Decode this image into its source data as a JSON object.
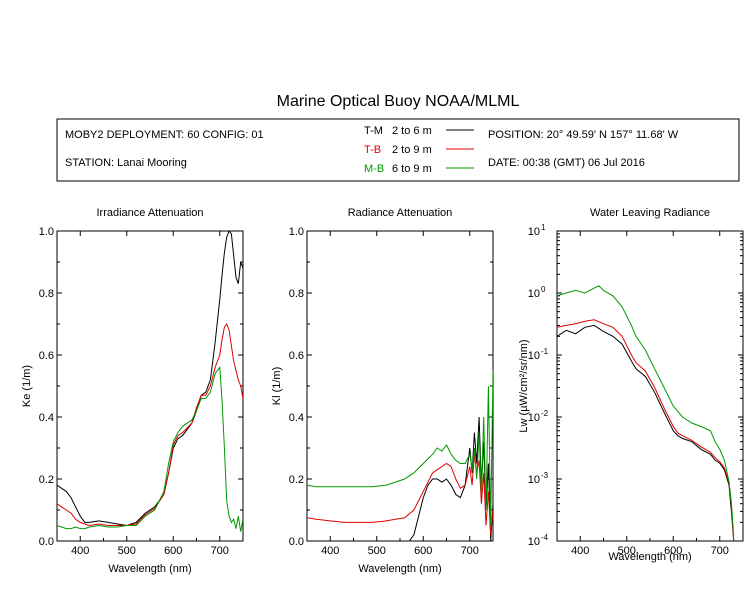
{
  "title": "Marine Optical Buoy NOAA/MLML",
  "info": {
    "deployment": "MOBY2 DEPLOYMENT: 60 CONFIG: 01",
    "station": "STATION: Lanai Mooring",
    "position": "POSITION: 20° 49.59' N   157° 11.68' W",
    "date": "DATE: 00:38 (GMT) 06 Jul 2016"
  },
  "legend": [
    {
      "label": "T-M",
      "range": "2 to 6  m",
      "color": "#000000"
    },
    {
      "label": "T-B",
      "range": "2 to 9  m",
      "color": "#dd0000"
    },
    {
      "label": "M-B",
      "range": "6 to 9  m",
      "color": "#009900"
    }
  ],
  "chart_data": [
    {
      "type": "line",
      "title": "Irradiance Attenuation",
      "xlabel": "Wavelength (nm)",
      "ylabel": "Ke  (1/m)",
      "xlim": [
        350,
        750
      ],
      "ylim": [
        0,
        1.0
      ],
      "xticks": [
        400,
        500,
        600,
        700
      ],
      "yticks": [
        0,
        0.2,
        0.4,
        0.6,
        0.8,
        1.0
      ],
      "ytick_labels": [
        "0.0",
        "0.2",
        "0.4",
        "0.6",
        "0.8",
        "1.0"
      ],
      "series": [
        {
          "name": "T-M",
          "color": "#000000",
          "x": [
            350,
            360,
            370,
            380,
            390,
            400,
            410,
            420,
            440,
            460,
            480,
            500,
            520,
            540,
            560,
            580,
            590,
            600,
            610,
            620,
            640,
            650,
            660,
            670,
            680,
            690,
            700,
            705,
            710,
            715,
            720,
            725,
            730,
            735,
            740,
            745,
            750
          ],
          "y": [
            0.18,
            0.17,
            0.16,
            0.14,
            0.11,
            0.08,
            0.06,
            0.06,
            0.065,
            0.06,
            0.055,
            0.05,
            0.06,
            0.09,
            0.11,
            0.15,
            0.22,
            0.3,
            0.33,
            0.34,
            0.38,
            0.42,
            0.47,
            0.48,
            0.52,
            0.64,
            0.78,
            0.86,
            0.93,
            0.98,
            1.0,
            0.99,
            0.92,
            0.85,
            0.83,
            0.9,
            0.88
          ]
        },
        {
          "name": "T-B",
          "color": "#dd0000",
          "x": [
            350,
            360,
            370,
            380,
            390,
            400,
            410,
            420,
            440,
            460,
            480,
            500,
            520,
            540,
            560,
            580,
            590,
            600,
            610,
            620,
            640,
            650,
            660,
            670,
            680,
            690,
            700,
            705,
            710,
            715,
            720,
            725,
            730,
            735,
            740,
            745,
            750
          ],
          "y": [
            0.12,
            0.11,
            0.1,
            0.09,
            0.07,
            0.06,
            0.055,
            0.05,
            0.055,
            0.05,
            0.05,
            0.05,
            0.055,
            0.085,
            0.105,
            0.15,
            0.22,
            0.31,
            0.34,
            0.35,
            0.38,
            0.43,
            0.47,
            0.47,
            0.5,
            0.56,
            0.6,
            0.65,
            0.69,
            0.7,
            0.68,
            0.63,
            0.58,
            0.55,
            0.52,
            0.5,
            0.46
          ]
        },
        {
          "name": "M-B",
          "color": "#009900",
          "x": [
            350,
            360,
            370,
            380,
            390,
            400,
            410,
            420,
            440,
            460,
            480,
            500,
            520,
            540,
            560,
            580,
            590,
            600,
            610,
            620,
            640,
            650,
            660,
            670,
            680,
            690,
            700,
            705,
            710,
            715,
            720,
            725,
            730,
            735,
            740,
            745,
            750
          ],
          "y": [
            0.05,
            0.045,
            0.04,
            0.04,
            0.045,
            0.04,
            0.04,
            0.045,
            0.05,
            0.045,
            0.045,
            0.05,
            0.05,
            0.08,
            0.1,
            0.16,
            0.25,
            0.32,
            0.35,
            0.37,
            0.39,
            0.42,
            0.46,
            0.46,
            0.48,
            0.54,
            0.56,
            0.45,
            0.3,
            0.13,
            0.08,
            0.06,
            0.07,
            0.04,
            0.08,
            0.03,
            0.07
          ]
        }
      ]
    },
    {
      "type": "line",
      "title": "Radiance Attenuation",
      "xlabel": "Wavelength (nm)",
      "ylabel": "Kl  (1/m)",
      "xlim": [
        350,
        750
      ],
      "ylim": [
        0,
        1.0
      ],
      "xticks": [
        400,
        500,
        600,
        700
      ],
      "yticks": [
        0,
        0.2,
        0.4,
        0.6,
        0.8,
        1.0
      ],
      "ytick_labels": [
        "0.0",
        "0.2",
        "0.4",
        "0.6",
        "0.8",
        "1.0"
      ],
      "series": [
        {
          "name": "T-M",
          "color": "#000000",
          "x": [
            560,
            570,
            580,
            590,
            600,
            610,
            620,
            630,
            640,
            650,
            660,
            670,
            680,
            690,
            700,
            705,
            710,
            715,
            720,
            725,
            730,
            735,
            740,
            745,
            750
          ],
          "y": [
            0.0,
            0.0,
            0.02,
            0.08,
            0.14,
            0.18,
            0.2,
            0.2,
            0.19,
            0.2,
            0.18,
            0.15,
            0.14,
            0.18,
            0.3,
            0.22,
            0.35,
            0.25,
            0.4,
            0.18,
            0.32,
            0.1,
            0.25,
            0.0,
            0.12
          ]
        },
        {
          "name": "T-B",
          "color": "#dd0000",
          "x": [
            350,
            370,
            400,
            430,
            460,
            490,
            520,
            540,
            560,
            580,
            600,
            620,
            640,
            650,
            660,
            670,
            680,
            690,
            700,
            705,
            710,
            715,
            720,
            725,
            730,
            735,
            740,
            745,
            750
          ],
          "y": [
            0.075,
            0.07,
            0.065,
            0.06,
            0.06,
            0.06,
            0.065,
            0.07,
            0.075,
            0.1,
            0.16,
            0.22,
            0.24,
            0.25,
            0.24,
            0.2,
            0.17,
            0.18,
            0.24,
            0.18,
            0.28,
            0.22,
            0.26,
            0.12,
            0.22,
            0.05,
            0.16,
            0.02,
            0.1
          ]
        },
        {
          "name": "M-B",
          "color": "#009900",
          "x": [
            350,
            370,
            400,
            430,
            460,
            490,
            520,
            540,
            560,
            580,
            600,
            620,
            630,
            640,
            650,
            660,
            670,
            680,
            690,
            700,
            705,
            710,
            715,
            720,
            725,
            730,
            735,
            740,
            745,
            750
          ],
          "y": [
            0.18,
            0.175,
            0.175,
            0.175,
            0.175,
            0.175,
            0.18,
            0.19,
            0.2,
            0.22,
            0.25,
            0.28,
            0.3,
            0.29,
            0.31,
            0.28,
            0.26,
            0.25,
            0.25,
            0.28,
            0.23,
            0.3,
            0.2,
            0.35,
            0.15,
            0.4,
            0.1,
            0.5,
            0.05,
            0.55
          ]
        }
      ]
    },
    {
      "type": "line",
      "title": "Water Leaving Radiance",
      "xlabel": "Wavelength (nm)",
      "ylabel": "Lw  (µW/cm²/sr/nm)",
      "xlim": [
        350,
        750
      ],
      "ylim": [
        0.0001,
        10
      ],
      "yscale": "log",
      "xticks": [
        400,
        500,
        600,
        700
      ],
      "yticks": [
        -4,
        -3,
        -2,
        -1,
        0,
        1
      ],
      "series": [
        {
          "name": "T-M",
          "color": "#000000",
          "x": [
            350,
            370,
            390,
            410,
            430,
            450,
            470,
            490,
            510,
            520,
            540,
            560,
            580,
            600,
            610,
            620,
            640,
            660,
            680,
            690,
            700,
            710,
            720,
            725,
            730
          ],
          "y": [
            0.2,
            0.25,
            0.22,
            0.28,
            0.3,
            0.24,
            0.2,
            0.15,
            0.08,
            0.06,
            0.045,
            0.025,
            0.012,
            0.006,
            0.005,
            0.0045,
            0.004,
            0.003,
            0.0025,
            0.002,
            0.0018,
            0.0014,
            0.0008,
            0.0003,
            0.0001
          ]
        },
        {
          "name": "T-B",
          "color": "#dd0000",
          "x": [
            350,
            370,
            390,
            410,
            430,
            450,
            470,
            490,
            510,
            520,
            540,
            560,
            580,
            600,
            610,
            620,
            640,
            660,
            680,
            690,
            700,
            710,
            720,
            725,
            730
          ],
          "y": [
            0.28,
            0.3,
            0.32,
            0.35,
            0.37,
            0.32,
            0.28,
            0.2,
            0.1,
            0.075,
            0.055,
            0.03,
            0.014,
            0.007,
            0.0055,
            0.005,
            0.0042,
            0.0033,
            0.0027,
            0.0022,
            0.0019,
            0.0015,
            0.0009,
            0.0004,
            0.0001
          ]
        },
        {
          "name": "M-B",
          "color": "#009900",
          "x": [
            350,
            370,
            390,
            410,
            430,
            440,
            450,
            470,
            490,
            510,
            520,
            540,
            560,
            580,
            600,
            620,
            640,
            660,
            680,
            690,
            700,
            710,
            720,
            725,
            730
          ],
          "y": [
            0.9,
            1.0,
            1.1,
            1.0,
            1.2,
            1.3,
            1.1,
            0.9,
            0.6,
            0.3,
            0.2,
            0.12,
            0.06,
            0.03,
            0.015,
            0.01,
            0.008,
            0.007,
            0.006,
            0.004,
            0.003,
            0.002,
            0.0009,
            0.0004,
            0.00012
          ]
        }
      ]
    }
  ]
}
